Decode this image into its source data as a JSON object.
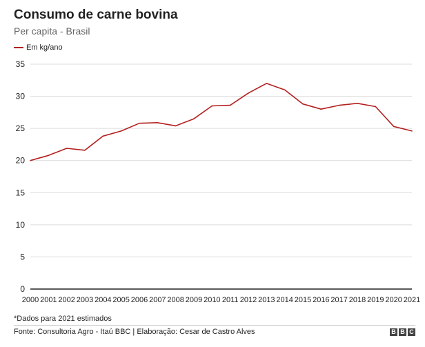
{
  "colors": {
    "series": "#b3201f",
    "grid": "#dcdcdc",
    "axis": "#222222"
  },
  "chart_data": {
    "type": "line",
    "title": "Consumo de carne bovina",
    "subtitle": "Per capita - Brasil",
    "x": [
      "2000",
      "2001",
      "2002",
      "2003",
      "2004",
      "2005",
      "2006",
      "2007",
      "2008",
      "2009",
      "2010",
      "2011",
      "2012",
      "2013",
      "2014",
      "2015",
      "2016",
      "2017",
      "2018",
      "2019",
      "2020",
      "2021"
    ],
    "series": [
      {
        "name": "Em kg/ano",
        "values": [
          20.0,
          20.8,
          21.9,
          21.6,
          23.8,
          24.6,
          25.8,
          25.9,
          25.4,
          26.5,
          28.5,
          28.6,
          30.5,
          32.0,
          31.0,
          28.8,
          28.0,
          28.6,
          28.9,
          28.4,
          25.3,
          24.6
        ]
      }
    ],
    "ylim": [
      0,
      35
    ],
    "yticks": [
      0,
      5,
      10,
      15,
      20,
      25,
      30,
      35
    ],
    "grid": true,
    "legend": "top-left",
    "xlabel": "",
    "ylabel": ""
  },
  "footer": {
    "note": "*Dados para 2021 estimados",
    "source": "Fonte: Consultoria Agro - Itaú BBC | Elaboração: Cesar de Castro Alves",
    "logo_letters": [
      "B",
      "B",
      "C"
    ]
  }
}
